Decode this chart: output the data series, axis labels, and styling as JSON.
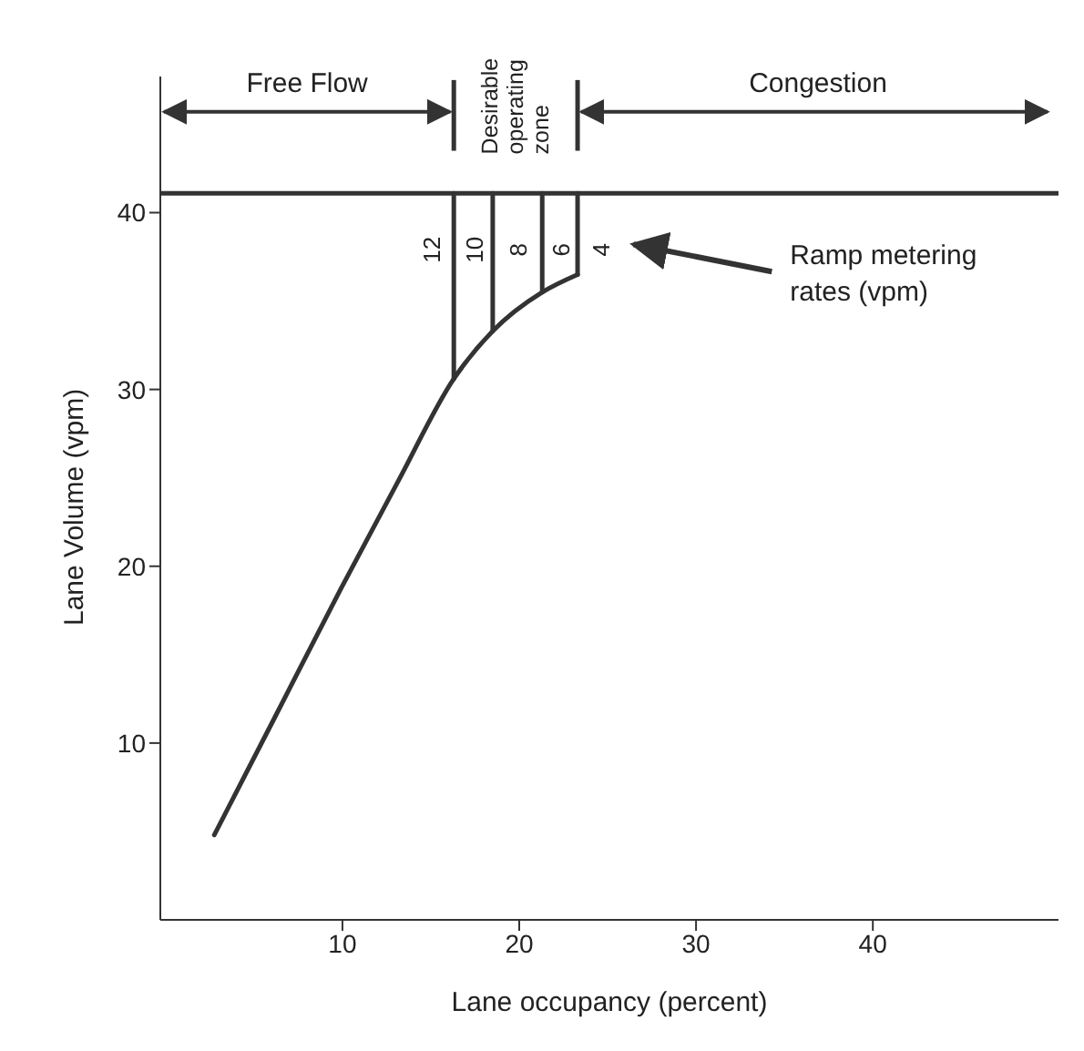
{
  "chart_data": {
    "type": "line",
    "xlabel": "Lane occupancy (percent)",
    "ylabel": "Lane Volume (vpm)",
    "xlim": [
      -0.3,
      50.5
    ],
    "ylim": [
      0,
      47.7
    ],
    "xticks": [
      10,
      20,
      30,
      40
    ],
    "yticks": [
      10,
      20,
      30,
      40
    ],
    "marker": "none",
    "line_style": "solid",
    "series": [
      {
        "color": "#333333",
        "x": [
          2.75,
          6.2,
          9.9,
          13.2,
          16.3,
          18.5,
          21.3,
          23.3
        ],
        "values": [
          4.8,
          11.5,
          18.7,
          24.9,
          30.6,
          33.3,
          35.5,
          36.5
        ]
      },
      {
        "color": "#333333",
        "x": [
          16.3,
          16.3
        ],
        "values": [
          30.6,
          41.1
        ]
      },
      {
        "color": "#333333",
        "x": [
          18.5,
          18.5
        ],
        "values": [
          33.3,
          41.1
        ]
      },
      {
        "color": "#333333",
        "x": [
          21.3,
          21.3
        ],
        "values": [
          35.5,
          41.1
        ]
      },
      {
        "color": "#333333",
        "x": [
          23.3,
          23.3
        ],
        "values": [
          36.5,
          41.1
        ]
      }
    ],
    "ref_lines": [
      {
        "axis": "y",
        "value": 41.1,
        "color": "#333333"
      }
    ],
    "annotations": [
      "Free Flow",
      "Desirable operating zone",
      "Congestion",
      "12",
      "10",
      "8",
      "6",
      "4",
      "Ramp metering rates (vpm)"
    ]
  }
}
